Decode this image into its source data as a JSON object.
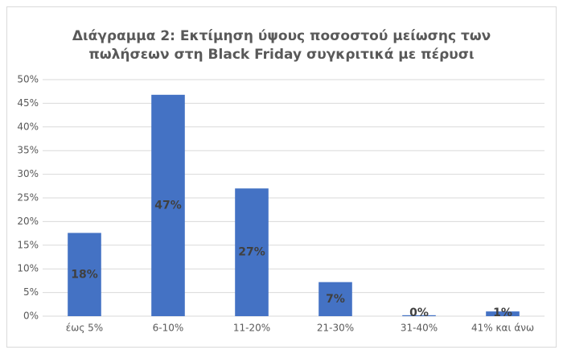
{
  "chart_data": {
    "type": "bar",
    "title": [
      "Διάγραμμα 2: Εκτίμηση ύψους ποσοστού μείωσης των",
      "πωλήσεων στη Black Friday συγκριτικά με πέρυσι"
    ],
    "categories": [
      "έως 5%",
      "6-10%",
      "11-20%",
      "21-30%",
      "31-40%",
      "41% και άνω"
    ],
    "values": [
      17.6,
      46.8,
      27,
      7.2,
      0.2,
      1
    ],
    "value_labels": [
      "18%",
      "47%",
      "27%",
      "7%",
      "0%",
      "1%"
    ],
    "color": "#4472c4",
    "ylim": [
      0,
      50
    ],
    "yticks": [
      {
        "value": 0,
        "label": "0%"
      },
      {
        "value": 5,
        "label": "5%"
      },
      {
        "value": 10,
        "label": "10%"
      },
      {
        "value": 15,
        "label": "15%"
      },
      {
        "value": 20,
        "label": "20%"
      },
      {
        "value": 25,
        "label": "25%"
      },
      {
        "value": 30,
        "label": "30%"
      },
      {
        "value": 35,
        "label": "35%"
      },
      {
        "value": 40,
        "label": "40%"
      },
      {
        "value": 45,
        "label": "45%"
      },
      {
        "value": 50,
        "label": "50%"
      }
    ],
    "grid": true
  }
}
